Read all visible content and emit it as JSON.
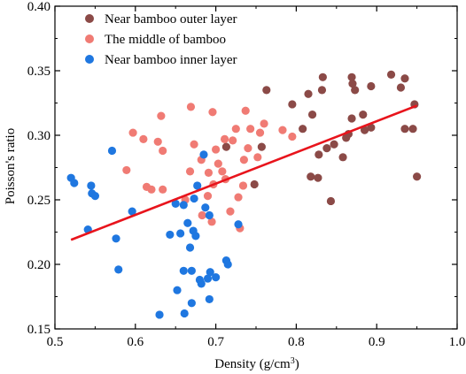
{
  "chart_data": {
    "type": "scatter",
    "title": "",
    "xlabel": "Density (g/cm",
    "xlabel_sup": "3",
    "xlabel_tail": ")",
    "ylabel": "Poisson's ratio",
    "xlim": [
      0.5,
      1.0
    ],
    "ylim": [
      0.15,
      0.4
    ],
    "xticks": [
      0.5,
      0.6,
      0.7,
      0.8,
      0.9,
      1.0
    ],
    "yticks": [
      0.15,
      0.2,
      0.25,
      0.3,
      0.35,
      0.4
    ],
    "xtick_labels": [
      "0.5",
      "0.6",
      "0.7",
      "0.8",
      "0.9",
      "1.0"
    ],
    "ytick_labels": [
      "0.15",
      "0.20",
      "0.25",
      "0.30",
      "0.35",
      "0.40"
    ],
    "grid": false,
    "legend_position": "top-left",
    "series": [
      {
        "name": "Near bamboo outer layer",
        "color": "#8b4a47",
        "points": [
          [
            0.713,
            0.291
          ],
          [
            0.748,
            0.262
          ],
          [
            0.757,
            0.291
          ],
          [
            0.763,
            0.335
          ],
          [
            0.795,
            0.324
          ],
          [
            0.808,
            0.305
          ],
          [
            0.815,
            0.332
          ],
          [
            0.818,
            0.268
          ],
          [
            0.82,
            0.316
          ],
          [
            0.827,
            0.267
          ],
          [
            0.828,
            0.285
          ],
          [
            0.832,
            0.335
          ],
          [
            0.833,
            0.345
          ],
          [
            0.838,
            0.29
          ],
          [
            0.843,
            0.249
          ],
          [
            0.847,
            0.293
          ],
          [
            0.858,
            0.283
          ],
          [
            0.862,
            0.298
          ],
          [
            0.865,
            0.301
          ],
          [
            0.869,
            0.345
          ],
          [
            0.869,
            0.313
          ],
          [
            0.87,
            0.34
          ],
          [
            0.873,
            0.335
          ],
          [
            0.883,
            0.316
          ],
          [
            0.885,
            0.304
          ],
          [
            0.893,
            0.306
          ],
          [
            0.893,
            0.338
          ],
          [
            0.918,
            0.347
          ],
          [
            0.93,
            0.337
          ],
          [
            0.935,
            0.305
          ],
          [
            0.935,
            0.344
          ],
          [
            0.945,
            0.305
          ],
          [
            0.947,
            0.324
          ],
          [
            0.95,
            0.268
          ]
        ]
      },
      {
        "name": "The middle of bamboo",
        "color": "#f07b74",
        "points": [
          [
            0.589,
            0.273
          ],
          [
            0.597,
            0.302
          ],
          [
            0.61,
            0.297
          ],
          [
            0.614,
            0.26
          ],
          [
            0.62,
            0.258
          ],
          [
            0.628,
            0.295
          ],
          [
            0.632,
            0.315
          ],
          [
            0.634,
            0.258
          ],
          [
            0.634,
            0.288
          ],
          [
            0.662,
            0.25
          ],
          [
            0.668,
            0.272
          ],
          [
            0.669,
            0.322
          ],
          [
            0.673,
            0.293
          ],
          [
            0.682,
            0.281
          ],
          [
            0.683,
            0.238
          ],
          [
            0.69,
            0.253
          ],
          [
            0.691,
            0.271
          ],
          [
            0.695,
            0.233
          ],
          [
            0.696,
            0.318
          ],
          [
            0.697,
            0.262
          ],
          [
            0.7,
            0.289
          ],
          [
            0.703,
            0.278
          ],
          [
            0.708,
            0.272
          ],
          [
            0.711,
            0.297
          ],
          [
            0.712,
            0.266
          ],
          [
            0.718,
            0.241
          ],
          [
            0.721,
            0.296
          ],
          [
            0.725,
            0.305
          ],
          [
            0.728,
            0.252
          ],
          [
            0.73,
            0.228
          ],
          [
            0.734,
            0.261
          ],
          [
            0.735,
            0.281
          ],
          [
            0.737,
            0.319
          ],
          [
            0.74,
            0.29
          ],
          [
            0.743,
            0.305
          ],
          [
            0.752,
            0.283
          ],
          [
            0.755,
            0.302
          ],
          [
            0.76,
            0.309
          ],
          [
            0.783,
            0.304
          ],
          [
            0.795,
            0.299
          ]
        ]
      },
      {
        "name": "Near bamboo inner layer",
        "color": "#1f77e0",
        "points": [
          [
            0.52,
            0.267
          ],
          [
            0.524,
            0.263
          ],
          [
            0.541,
            0.227
          ],
          [
            0.545,
            0.261
          ],
          [
            0.546,
            0.255
          ],
          [
            0.55,
            0.253
          ],
          [
            0.571,
            0.288
          ],
          [
            0.576,
            0.22
          ],
          [
            0.579,
            0.196
          ],
          [
            0.596,
            0.241
          ],
          [
            0.63,
            0.161
          ],
          [
            0.643,
            0.223
          ],
          [
            0.65,
            0.247
          ],
          [
            0.652,
            0.18
          ],
          [
            0.656,
            0.224
          ],
          [
            0.66,
            0.246
          ],
          [
            0.66,
            0.195
          ],
          [
            0.661,
            0.162
          ],
          [
            0.665,
            0.232
          ],
          [
            0.668,
            0.213
          ],
          [
            0.67,
            0.17
          ],
          [
            0.67,
            0.195
          ],
          [
            0.672,
            0.226
          ],
          [
            0.673,
            0.251
          ],
          [
            0.675,
            0.222
          ],
          [
            0.677,
            0.261
          ],
          [
            0.68,
            0.188
          ],
          [
            0.682,
            0.185
          ],
          [
            0.685,
            0.285
          ],
          [
            0.687,
            0.244
          ],
          [
            0.69,
            0.189
          ],
          [
            0.692,
            0.238
          ],
          [
            0.692,
            0.173
          ],
          [
            0.693,
            0.194
          ],
          [
            0.7,
            0.19
          ],
          [
            0.713,
            0.203
          ],
          [
            0.715,
            0.2
          ],
          [
            0.728,
            0.231
          ]
        ]
      }
    ],
    "fit_line": {
      "color": "#e8141c",
      "x": [
        0.52,
        0.95
      ],
      "y": [
        0.219,
        0.323
      ]
    }
  }
}
